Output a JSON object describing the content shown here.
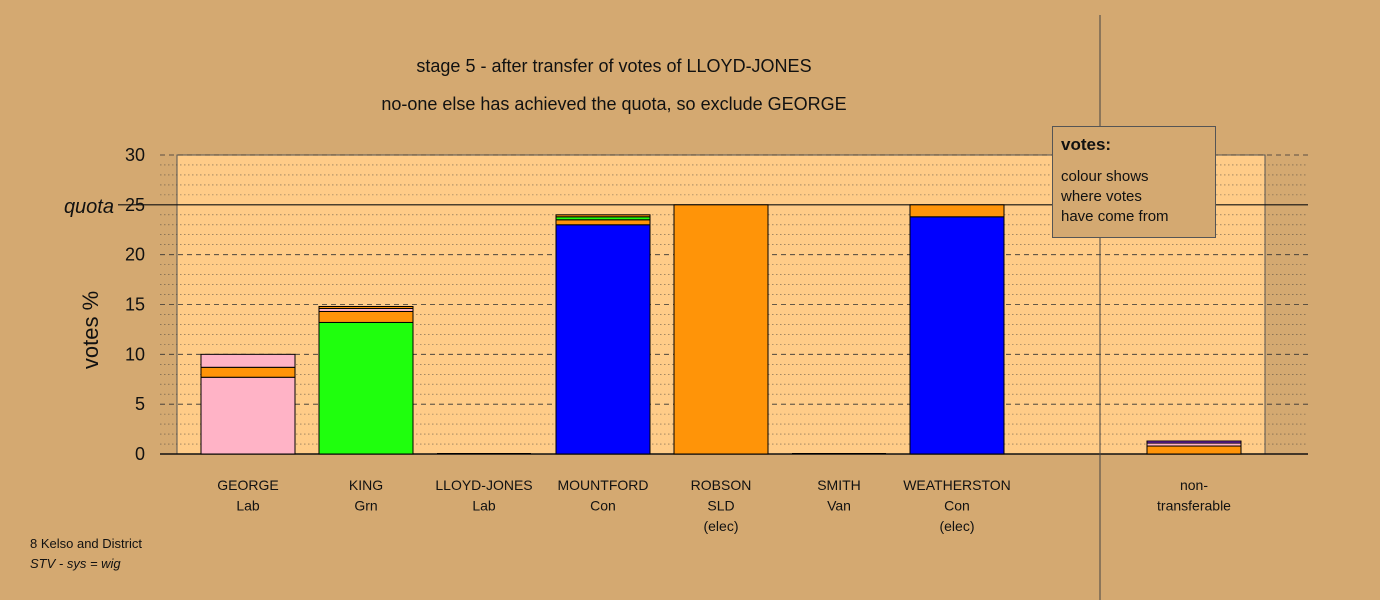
{
  "chart_data": {
    "type": "bar",
    "stacked": true,
    "title": "stage 5 - after transfer of votes of LLOYD-JONES",
    "subtitle": "no-one else has achieved the quota, so exclude GEORGE",
    "ylabel": "votes %",
    "ylim": [
      0,
      30
    ],
    "yticks": [
      0,
      5,
      10,
      15,
      20,
      25,
      30
    ],
    "quota": 25,
    "quota_label": "quota",
    "categories": [
      {
        "name": "GEORGE",
        "party": "Lab",
        "note": ""
      },
      {
        "name": "KING",
        "party": "Grn",
        "note": ""
      },
      {
        "name": "LLOYD-JONES",
        "party": "Lab",
        "note": ""
      },
      {
        "name": "MOUNTFORD",
        "party": "Con",
        "note": ""
      },
      {
        "name": "ROBSON",
        "party": "SLD",
        "note": "(elec)"
      },
      {
        "name": "SMITH",
        "party": "Van",
        "note": ""
      },
      {
        "name": "WEATHERSTON",
        "party": "Con",
        "note": "(elec)"
      },
      {
        "name": "non-",
        "party": "transferable",
        "note": ""
      }
    ],
    "stacks": [
      [
        {
          "value": 7.7,
          "color": "#ffb3c6"
        },
        {
          "value": 1.0,
          "color": "#ff9408"
        },
        {
          "value": 1.3,
          "color": "#ffb3c6"
        }
      ],
      [
        {
          "value": 13.2,
          "color": "#1fff0d"
        },
        {
          "value": 1.1,
          "color": "#ff9408"
        },
        {
          "value": 0.3,
          "color": "#ffb3c6"
        },
        {
          "value": 0.2,
          "color": "#ff9408"
        }
      ],
      [],
      [
        {
          "value": 23.0,
          "color": "#0000ff"
        },
        {
          "value": 0.5,
          "color": "#ff9408"
        },
        {
          "value": 0.3,
          "color": "#1fff0d"
        },
        {
          "value": 0.2,
          "color": "#ff9408"
        }
      ],
      [
        {
          "value": 25.0,
          "color": "#ff9408"
        }
      ],
      [],
      [
        {
          "value": 23.8,
          "color": "#0000ff"
        },
        {
          "value": 1.2,
          "color": "#ff9408"
        }
      ],
      [
        {
          "value": 0.8,
          "color": "#ff9408"
        },
        {
          "value": 0.3,
          "color": "#ffb3c6"
        },
        {
          "value": 0.2,
          "color": "#8a2be2"
        }
      ]
    ],
    "colors": {
      "plot_bg": "#ffcc88",
      "page_bg": "#d4a971",
      "grid": "#333333"
    }
  },
  "legend": {
    "heading": "votes:",
    "lines": [
      "colour shows",
      "where votes",
      "have come from"
    ]
  },
  "footer": {
    "line1": "8 Kelso and District",
    "line2": "STV - sys = wig"
  }
}
